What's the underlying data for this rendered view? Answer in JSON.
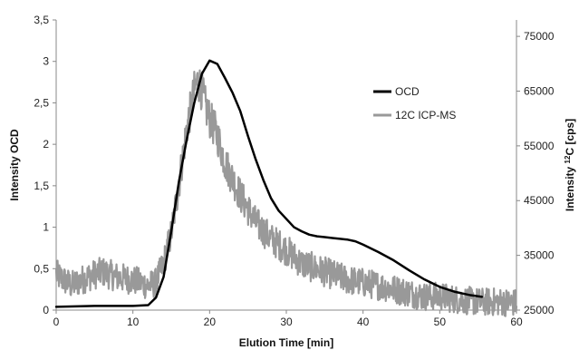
{
  "chart_data": {
    "type": "line",
    "xlabel": "Elution Time [min]",
    "ylabel_left": "Intensity  OCD",
    "ylabel_right_parts": [
      "Intensity ",
      "12",
      "C [cps]"
    ],
    "xlim": [
      0,
      60
    ],
    "xticks": [
      0,
      10,
      20,
      30,
      40,
      50,
      60
    ],
    "ylim_left": [
      0,
      3.5
    ],
    "yticks_left": [
      "0",
      "0,5",
      "1",
      "1,5",
      "2",
      "2,5",
      "3",
      "3,5"
    ],
    "ylim_right": [
      25000,
      78000
    ],
    "yticks_right": [
      "25000",
      "35000",
      "45000",
      "55000",
      "65000",
      "75000"
    ],
    "grid": false,
    "legend_position": "right",
    "series": [
      {
        "name": "OCD",
        "axis": "left",
        "color": "#000000",
        "x": [
          0,
          5,
          10,
          12,
          13,
          14,
          15,
          16,
          17,
          18,
          19,
          20,
          21,
          22,
          23,
          24,
          25,
          26,
          27,
          28,
          29,
          30,
          31,
          32,
          33,
          34,
          35,
          36,
          37,
          38,
          39,
          40,
          42,
          44,
          46,
          48,
          50,
          52,
          54,
          55.5
        ],
        "y": [
          0.04,
          0.05,
          0.05,
          0.06,
          0.15,
          0.4,
          0.95,
          1.55,
          2.05,
          2.5,
          2.85,
          3.01,
          2.97,
          2.8,
          2.62,
          2.4,
          2.1,
          1.82,
          1.57,
          1.35,
          1.2,
          1.1,
          1.0,
          0.95,
          0.91,
          0.89,
          0.88,
          0.87,
          0.86,
          0.85,
          0.83,
          0.79,
          0.7,
          0.6,
          0.48,
          0.37,
          0.28,
          0.22,
          0.18,
          0.16
        ]
      },
      {
        "name": "12C ICP-MS",
        "axis": "right",
        "color": "#999999",
        "x": [
          0,
          2,
          4,
          6,
          8,
          10,
          12,
          13,
          14,
          15,
          16,
          17,
          18,
          18.5,
          19,
          19.5,
          20,
          21,
          22,
          23,
          24,
          26,
          28,
          30,
          32,
          35,
          38,
          40,
          42,
          45,
          48,
          50,
          52,
          55,
          58,
          60
        ],
        "y": [
          31500,
          29500,
          31000,
          32000,
          31000,
          30500,
          29500,
          30000,
          33500,
          39000,
          48000,
          58000,
          65000,
          67000,
          65000,
          62000,
          60000,
          57000,
          52000,
          49000,
          46000,
          41000,
          38000,
          36000,
          33500,
          32000,
          30500,
          30000,
          29500,
          28500,
          27500,
          27500,
          27000,
          26500,
          26500,
          26300
        ]
      }
    ]
  }
}
